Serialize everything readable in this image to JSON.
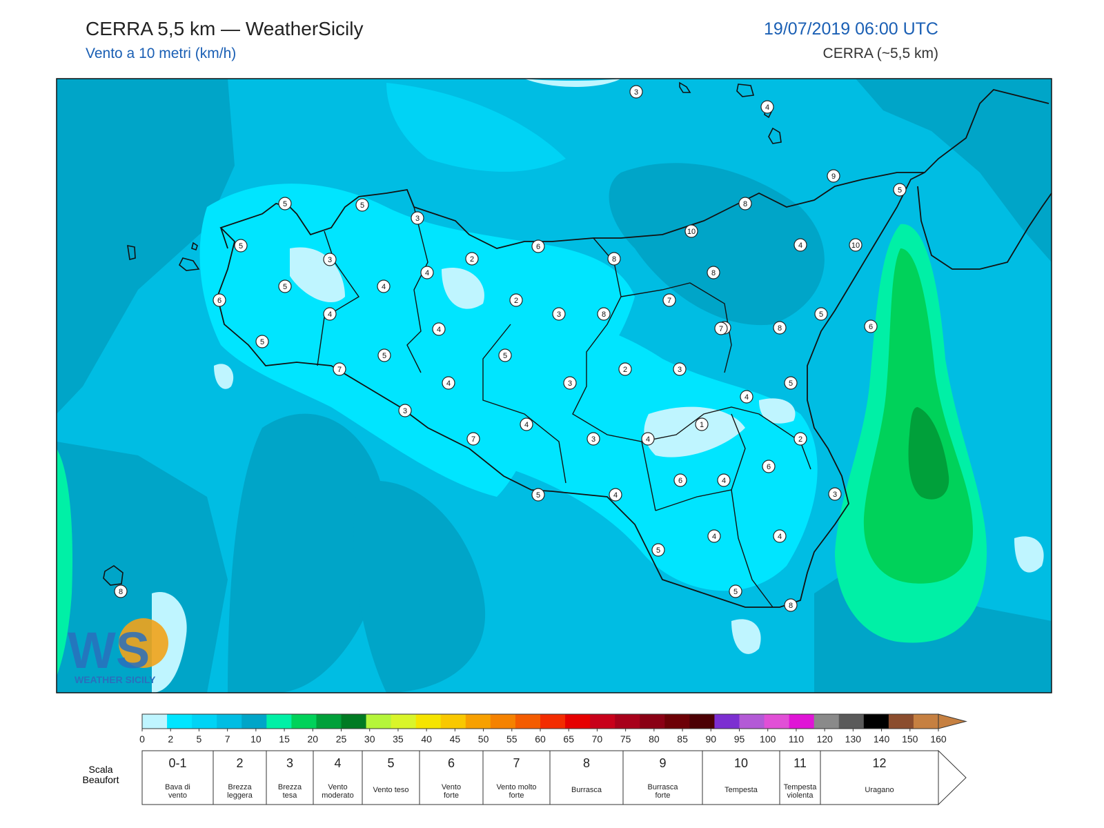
{
  "header": {
    "title": "CERRA 5,5 km — WeatherSicily",
    "subtitle": "Vento a 10 metri (km/h)",
    "datetime": "19/07/2019 06:00 UTC",
    "model": "CERRA (~5,5 km)"
  },
  "logo": {
    "text": "WEATHER SICILY",
    "mark": "WS"
  },
  "colorbar": {
    "ticks": [
      "0",
      "2",
      "5",
      "7",
      "10",
      "15",
      "20",
      "25",
      "30",
      "35",
      "40",
      "45",
      "50",
      "55",
      "60",
      "65",
      "70",
      "75",
      "80",
      "85",
      "90",
      "95",
      "100",
      "110",
      "120",
      "130",
      "140",
      "150",
      "160"
    ],
    "colors": [
      "#bff5ff",
      "#00e5ff",
      "#00d3f5",
      "#00bde3",
      "#00a5c8",
      "#00f0a6",
      "#00d25a",
      "#00a03a",
      "#007b23",
      "#b5f53a",
      "#d9f52a",
      "#f5e400",
      "#f9c800",
      "#f7a000",
      "#f58200",
      "#f45c00",
      "#f32c00",
      "#e60000",
      "#c8001a",
      "#a8001a",
      "#8a0014",
      "#6d0006",
      "#4c0004",
      "#7c2fd1",
      "#b35ad6",
      "#e14fd6",
      "#e015d6",
      "#8a8a8a",
      "#5a5a5a",
      "#000000",
      "#8b4d2e",
      "#c68041"
    ]
  },
  "beaufort": {
    "label_line1": "Scala",
    "label_line2": "Beaufort",
    "classes": [
      {
        "num": "0-1",
        "name1": "Bava di",
        "name2": "vento"
      },
      {
        "num": "2",
        "name1": "Brezza",
        "name2": "leggera"
      },
      {
        "num": "3",
        "name1": "Brezza",
        "name2": "tesa"
      },
      {
        "num": "4",
        "name1": "Vento",
        "name2": "moderato"
      },
      {
        "num": "5",
        "name1": "Vento teso",
        "name2": ""
      },
      {
        "num": "6",
        "name1": "Vento",
        "name2": "forte"
      },
      {
        "num": "7",
        "name1": "Vento molto",
        "name2": "forte"
      },
      {
        "num": "8",
        "name1": "Burrasca",
        "name2": ""
      },
      {
        "num": "9",
        "name1": "Burrasca",
        "name2": "forte"
      },
      {
        "num": "10",
        "name1": "Tempesta",
        "name2": ""
      },
      {
        "num": "11",
        "name1": "Tempesta",
        "name2": "violenta"
      },
      {
        "num": "12",
        "name1": "Uragano",
        "name2": ""
      }
    ]
  },
  "stations": [
    "3",
    "4",
    "9",
    "5",
    "5",
    "5",
    "3",
    "5",
    "3",
    "2",
    "4",
    "4",
    "5",
    "6",
    "4",
    "2",
    "3",
    "8",
    "4",
    "5",
    "5",
    "7",
    "4",
    "5",
    "3",
    "7",
    "4",
    "3",
    "6",
    "10",
    "8",
    "8",
    "8",
    "4",
    "10",
    "7",
    "7",
    "8",
    "5",
    "2",
    "3",
    "4",
    "5",
    "1",
    "4",
    "2",
    "6",
    "6",
    "4",
    "3",
    "5",
    "4",
    "3",
    "4",
    "5",
    "4",
    "7",
    "5",
    "8",
    "8",
    "6"
  ]
}
